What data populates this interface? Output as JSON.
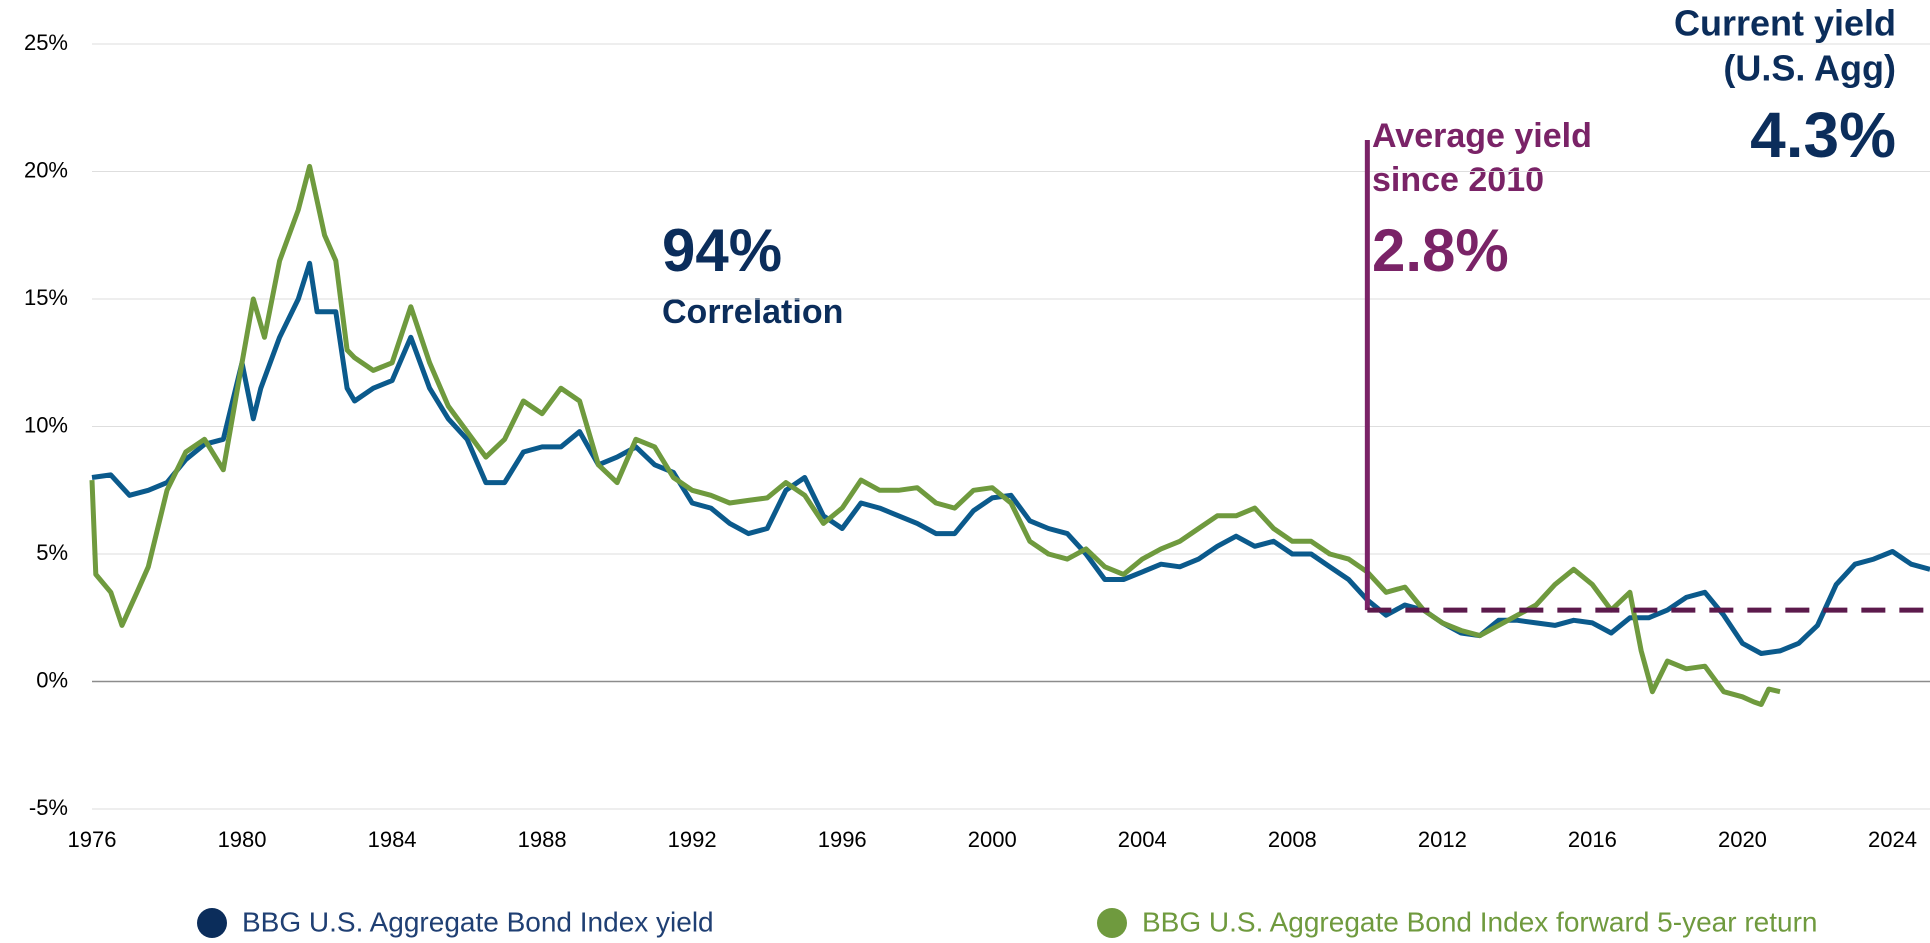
{
  "chart_data": {
    "type": "line",
    "xlim": [
      1976,
      2025
    ],
    "xticks": [
      1976,
      1980,
      1984,
      1988,
      1992,
      1996,
      2000,
      2004,
      2008,
      2012,
      2016,
      2020,
      2024
    ],
    "ylim": [
      -5,
      25
    ],
    "yticks": [
      {
        "value": -5,
        "label": "-5%"
      },
      {
        "value": 0,
        "label": "0%"
      },
      {
        "value": 5,
        "label": "5%"
      },
      {
        "value": 10,
        "label": "10%"
      },
      {
        "value": 15,
        "label": "15%"
      },
      {
        "value": 20,
        "label": "20%"
      },
      {
        "value": 25,
        "label": "25%"
      }
    ],
    "grid": true,
    "series": [
      {
        "name": "BBG U.S. Aggregate Bond Index yield",
        "color": "#0b5a8c",
        "x": [
          1976,
          1976.5,
          1977,
          1977.5,
          1978,
          1978.5,
          1979,
          1979.5,
          1980,
          1980.3,
          1980.5,
          1981,
          1981.5,
          1981.8,
          1982,
          1982.5,
          1982.8,
          1983,
          1983.5,
          1984,
          1984.5,
          1985,
          1985.5,
          1986,
          1986.5,
          1987,
          1987.5,
          1988,
          1988.5,
          1989,
          1989.5,
          1990,
          1990.5,
          1991,
          1991.5,
          1992,
          1992.5,
          1993,
          1993.5,
          1994,
          1994.5,
          1995,
          1995.5,
          1996,
          1996.5,
          1997,
          1997.5,
          1998,
          1998.5,
          1999,
          1999.5,
          2000,
          2000.5,
          2001,
          2001.5,
          2002,
          2002.5,
          2003,
          2003.5,
          2004,
          2004.5,
          2005,
          2005.5,
          2006,
          2006.5,
          2007,
          2007.5,
          2008,
          2008.5,
          2009,
          2009.5,
          2010,
          2010.5,
          2011,
          2011.5,
          2012,
          2012.5,
          2013,
          2013.5,
          2014,
          2014.5,
          2015,
          2015.5,
          2016,
          2016.5,
          2017,
          2017.5,
          2018,
          2018.5,
          2019,
          2019.5,
          2020,
          2020.5,
          2021,
          2021.5,
          2022,
          2022.5,
          2023,
          2023.5,
          2024,
          2024.5,
          2025
        ],
        "values": [
          8.0,
          8.1,
          7.3,
          7.5,
          7.8,
          8.7,
          9.3,
          9.5,
          12.5,
          10.3,
          11.5,
          13.5,
          15.0,
          16.4,
          14.5,
          14.5,
          11.5,
          11.0,
          11.5,
          11.8,
          13.5,
          11.5,
          10.3,
          9.5,
          7.8,
          7.8,
          9.0,
          9.2,
          9.2,
          9.8,
          8.5,
          8.8,
          9.2,
          8.5,
          8.2,
          7.0,
          6.8,
          6.2,
          5.8,
          6.0,
          7.5,
          8.0,
          6.5,
          6.0,
          7.0,
          6.8,
          6.5,
          6.2,
          5.8,
          5.8,
          6.7,
          7.2,
          7.3,
          6.3,
          6.0,
          5.8,
          5.0,
          4.0,
          4.0,
          4.3,
          4.6,
          4.5,
          4.8,
          5.3,
          5.7,
          5.3,
          5.5,
          5.0,
          5.0,
          4.5,
          4.0,
          3.2,
          2.6,
          3.0,
          2.8,
          2.3,
          1.9,
          1.8,
          2.4,
          2.4,
          2.3,
          2.2,
          2.4,
          2.3,
          1.9,
          2.5,
          2.5,
          2.8,
          3.3,
          3.5,
          2.6,
          1.5,
          1.1,
          1.2,
          1.5,
          2.2,
          3.8,
          4.6,
          4.8,
          5.1,
          4.6,
          4.4
        ]
      },
      {
        "name": "BBG U.S. Aggregate Bond Index forward 5-year return",
        "color": "#6f9a3e",
        "x": [
          1976,
          1976.1,
          1976.5,
          1976.8,
          1977.2,
          1977.5,
          1978,
          1978.5,
          1979,
          1979.5,
          1980,
          1980.3,
          1980.6,
          1981,
          1981.5,
          1981.8,
          1982.2,
          1982.5,
          1982.8,
          1983,
          1983.5,
          1984,
          1984.5,
          1985,
          1985.5,
          1986,
          1986.5,
          1987,
          1987.5,
          1988,
          1988.5,
          1989,
          1989.5,
          1990,
          1990.5,
          1991,
          1991.5,
          1992,
          1992.5,
          1993,
          1993.5,
          1994,
          1994.5,
          1995,
          1995.5,
          1996,
          1996.5,
          1997,
          1997.5,
          1998,
          1998.5,
          1999,
          1999.5,
          2000,
          2000.5,
          2001,
          2001.5,
          2002,
          2002.5,
          2003,
          2003.5,
          2004,
          2004.5,
          2005,
          2005.5,
          2006,
          2006.5,
          2007,
          2007.5,
          2008,
          2008.5,
          2009,
          2009.5,
          2010,
          2010.5,
          2011,
          2011.5,
          2012,
          2012.5,
          2013,
          2013.5,
          2014,
          2014.5,
          2015,
          2015.5,
          2016,
          2016.5,
          2017,
          2017.3,
          2017.6,
          2018,
          2018.5,
          2019,
          2019.5,
          2020,
          2020.3,
          2020.5,
          2020.7,
          2021
        ],
        "values": [
          7.9,
          4.2,
          3.5,
          2.2,
          3.5,
          4.5,
          7.5,
          9.0,
          9.5,
          8.3,
          12.5,
          15.0,
          13.5,
          16.5,
          18.5,
          20.2,
          17.5,
          16.5,
          13.0,
          12.7,
          12.2,
          12.5,
          14.7,
          12.5,
          10.8,
          9.8,
          8.8,
          9.5,
          11.0,
          10.5,
          11.5,
          11.0,
          8.5,
          7.8,
          9.5,
          9.2,
          8.0,
          7.5,
          7.3,
          7.0,
          7.1,
          7.2,
          7.8,
          7.3,
          6.2,
          6.8,
          7.9,
          7.5,
          7.5,
          7.6,
          7.0,
          6.8,
          7.5,
          7.6,
          7.0,
          5.5,
          5.0,
          4.8,
          5.2,
          4.5,
          4.2,
          4.8,
          5.2,
          5.5,
          6.0,
          6.5,
          6.5,
          6.8,
          6.0,
          5.5,
          5.5,
          5.0,
          4.8,
          4.3,
          3.5,
          3.7,
          2.8,
          2.3,
          2.0,
          1.8,
          2.2,
          2.6,
          3.0,
          3.8,
          4.4,
          3.8,
          2.8,
          3.5,
          1.2,
          -0.4,
          0.8,
          0.5,
          0.6,
          -0.4,
          -0.6,
          -0.8,
          -0.9,
          -0.3,
          -0.4
        ]
      }
    ],
    "correlation": {
      "value": 94,
      "label": "94%",
      "text": "Correlation"
    },
    "average_yield": {
      "title_lines": [
        "Average yield",
        "since 2010"
      ],
      "value": 2.8,
      "label": "2.8%",
      "x": 2010
    },
    "current_yield": {
      "title_lines": [
        "Current yield",
        "(U.S. Agg)"
      ],
      "value": 4.3,
      "label": "4.3%"
    }
  }
}
